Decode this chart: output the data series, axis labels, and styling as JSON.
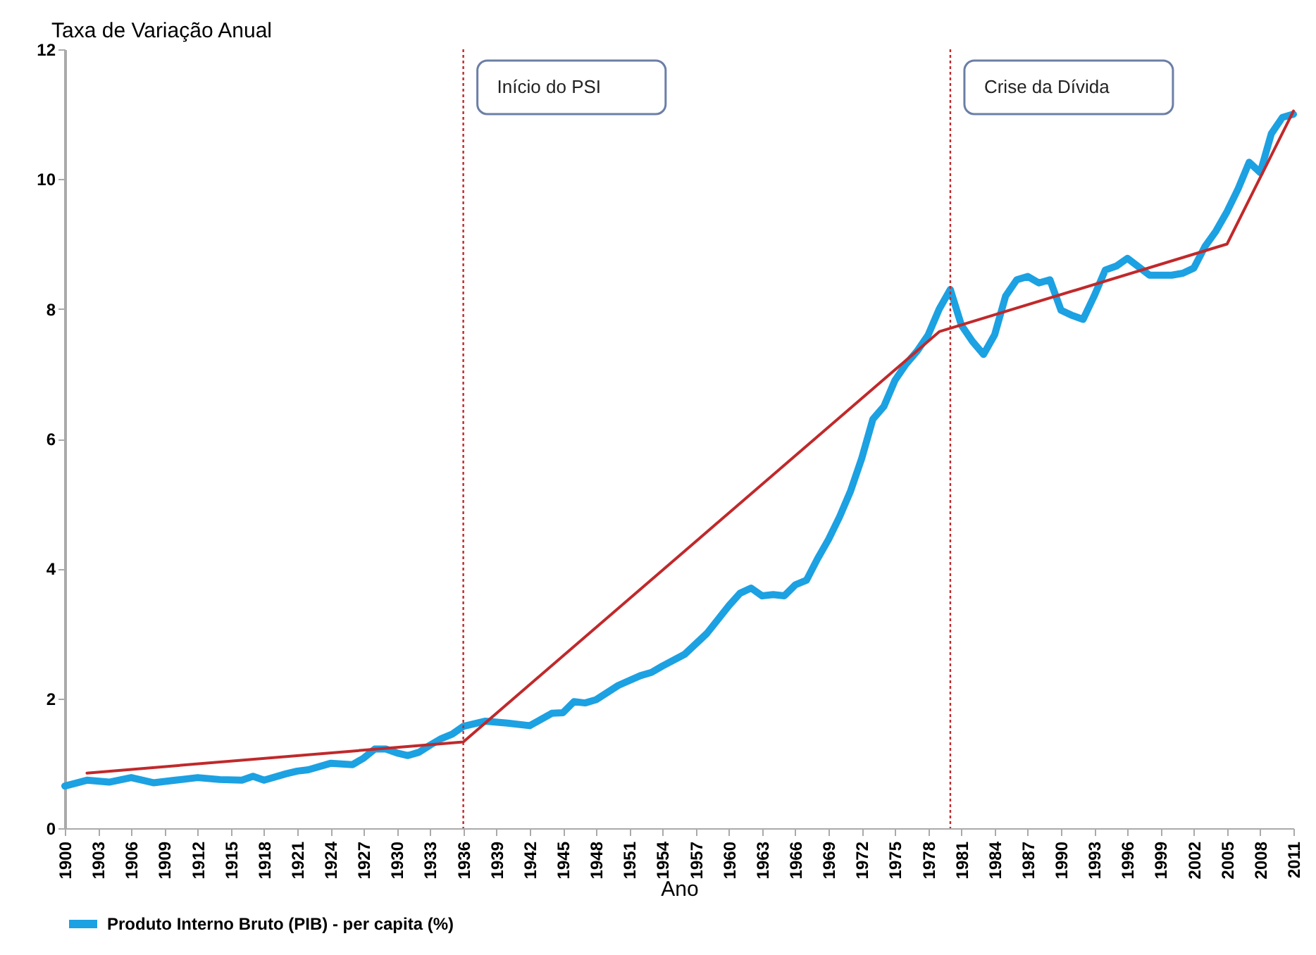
{
  "chart_data": {
    "type": "line",
    "ylabel": "Taxa de Variação Anual",
    "xlabel": "Ano",
    "xlim": [
      1900,
      2011
    ],
    "ylim": [
      0,
      12
    ],
    "xticks": [
      1900,
      1903,
      1906,
      1909,
      1912,
      1915,
      1918,
      1921,
      1924,
      1927,
      1930,
      1933,
      1936,
      1939,
      1942,
      1945,
      1948,
      1951,
      1954,
      1957,
      1960,
      1963,
      1966,
      1969,
      1972,
      1975,
      1978,
      1981,
      1984,
      1987,
      1990,
      1993,
      1996,
      1999,
      2002,
      2005,
      2008,
      2011
    ],
    "yticks": [
      0,
      2,
      4,
      6,
      8,
      10,
      12
    ],
    "grid": false,
    "legend": "bottom",
    "marker": "none",
    "line_style": "solid",
    "series": [
      {
        "name": "Produto Interno Bruto (PIB) - per capita (%)",
        "color": "#1ca1e2",
        "x": [
          1900,
          1902,
          1904,
          1906,
          1908,
          1910,
          1912,
          1914,
          1916,
          1917,
          1918,
          1920,
          1921,
          1922,
          1924,
          1926,
          1927,
          1928,
          1929,
          1930,
          1931,
          1932,
          1933,
          1934,
          1935,
          1936,
          1938,
          1940,
          1942,
          1944,
          1945,
          1946,
          1947,
          1948,
          1950,
          1952,
          1953,
          1954,
          1956,
          1958,
          1960,
          1961,
          1962,
          1963,
          1964,
          1965,
          1966,
          1967,
          1968,
          1969,
          1970,
          1971,
          1972,
          1973,
          1974,
          1975,
          1976,
          1977,
          1978,
          1979,
          1980,
          1981,
          1982,
          1983,
          1984,
          1985,
          1986,
          1987,
          1988,
          1989,
          1990,
          1991,
          1992,
          1993,
          1994,
          1995,
          1996,
          1997,
          1998,
          1999,
          2000,
          2001,
          2002,
          2003,
          2004,
          2005,
          2006,
          2007,
          2008,
          2009,
          2010,
          2011
        ],
        "values": [
          0.65,
          0.74,
          0.71,
          0.78,
          0.7,
          0.74,
          0.78,
          0.75,
          0.74,
          0.8,
          0.74,
          0.84,
          0.88,
          0.9,
          1.0,
          0.98,
          1.08,
          1.22,
          1.22,
          1.16,
          1.12,
          1.17,
          1.28,
          1.38,
          1.45,
          1.57,
          1.65,
          1.62,
          1.58,
          1.77,
          1.78,
          1.95,
          1.93,
          1.98,
          2.2,
          2.35,
          2.4,
          2.5,
          2.68,
          3.0,
          3.43,
          3.62,
          3.7,
          3.58,
          3.6,
          3.58,
          3.75,
          3.82,
          4.15,
          4.45,
          4.8,
          5.2,
          5.7,
          6.3,
          6.5,
          6.9,
          7.15,
          7.35,
          7.6,
          8.0,
          8.3,
          7.75,
          7.5,
          7.3,
          7.6,
          8.2,
          8.45,
          8.5,
          8.4,
          8.45,
          7.98,
          7.9,
          7.84,
          8.2,
          8.6,
          8.66,
          8.78,
          8.65,
          8.52,
          8.52,
          8.52,
          8.55,
          8.63,
          8.96,
          9.2,
          9.5,
          9.85,
          10.26,
          10.1,
          10.7,
          10.95,
          11.0
        ]
      },
      {
        "type": "line",
        "color": "#c0292b",
        "x": [
          1902,
          1936,
          1979,
          2005,
          2011
        ],
        "values": [
          0.85,
          1.33,
          7.65,
          9.0,
          11.05
        ]
      }
    ],
    "ref_lines": [
      {
        "axis": "x",
        "value": 1936,
        "label": "Início do PSI",
        "color": "#c0292b",
        "line_style": "dotted"
      },
      {
        "axis": "x",
        "value": 1980,
        "label": "Crise da Dívida",
        "color": "#c0292b",
        "line_style": "dotted"
      }
    ]
  }
}
